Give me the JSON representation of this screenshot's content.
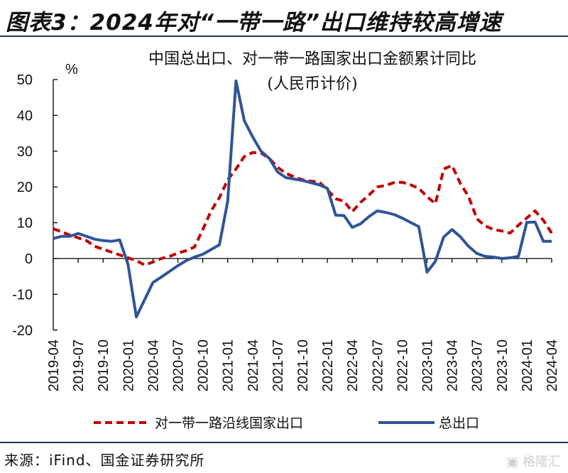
{
  "figure_title": "图表3：2024年对“一带一路”出口维持较高增速",
  "source": "来源：iFind、国金证券研究所",
  "watermark": "格隆汇",
  "chart_data": {
    "type": "line",
    "title": "中国总出口、对一带一路国家出口金额累计同比",
    "subtitle": "(人民币计价)",
    "ylabel": "%",
    "ylim": [
      -20,
      50
    ],
    "yticks": [
      50,
      40,
      30,
      20,
      10,
      0,
      -10,
      -20
    ],
    "x_start": "2019-04",
    "x_end": "2024-04",
    "x_tick_labels": [
      "2019-04",
      "2019-07",
      "2019-10",
      "2020-01",
      "2020-04",
      "2020-07",
      "2020-10",
      "2021-01",
      "2021-04",
      "2021-07",
      "2021-10",
      "2022-01",
      "2022-04",
      "2022-07",
      "2022-10",
      "2023-01",
      "2023-04",
      "2023-07",
      "2023-10",
      "2024-01",
      "2024-04"
    ],
    "grid": false,
    "legend_position": "bottom",
    "series": [
      {
        "name": "对一带一路沿线国家出口",
        "color": "#c00000",
        "style": "dashed",
        "values": [
          8.3,
          7.5,
          6.5,
          5.8,
          5.0,
          3.4,
          2.6,
          1.8,
          1.0,
          0.2,
          -0.6,
          -1.8,
          -1.0,
          0.0,
          0.6,
          1.5,
          2.2,
          3.2,
          8.1,
          13.3,
          17.0,
          22.0,
          25.0,
          28.5,
          29.6,
          29.5,
          28.0,
          25.5,
          23.8,
          22.8,
          22.0,
          21.6,
          21.4,
          19.2,
          16.7,
          16.0,
          13.1,
          15.7,
          17.7,
          20.0,
          20.4,
          21.2,
          21.3,
          20.6,
          19.6,
          17.3,
          15.3,
          25.0,
          26.0,
          21.0,
          17.3,
          11.1,
          9.1,
          8.1,
          7.7,
          7.1,
          9.3,
          11.3,
          13.3,
          10.7,
          7.1
        ]
      },
      {
        "name": "总出口",
        "color": "#2f5597",
        "style": "solid",
        "values": [
          5.6,
          6.2,
          6.2,
          7.0,
          6.2,
          5.4,
          5.0,
          4.8,
          5.2,
          -1.6,
          -16.3,
          -11.5,
          -6.7,
          -5.2,
          -3.6,
          -2.0,
          -0.6,
          0.4,
          1.2,
          2.5,
          3.8,
          16.0,
          49.6,
          38.5,
          34.0,
          30.0,
          28.0,
          24.2,
          22.6,
          22.2,
          21.8,
          21.2,
          20.6,
          19.6,
          12.1,
          12.0,
          8.7,
          9.7,
          11.7,
          13.3,
          12.9,
          12.3,
          11.3,
          10.1,
          8.9,
          -3.8,
          -0.8,
          6.0,
          8.1,
          6.1,
          3.4,
          1.4,
          0.6,
          0.4,
          0.0,
          0.2,
          0.6,
          10.1,
          10.2,
          4.8,
          4.8
        ]
      }
    ]
  }
}
